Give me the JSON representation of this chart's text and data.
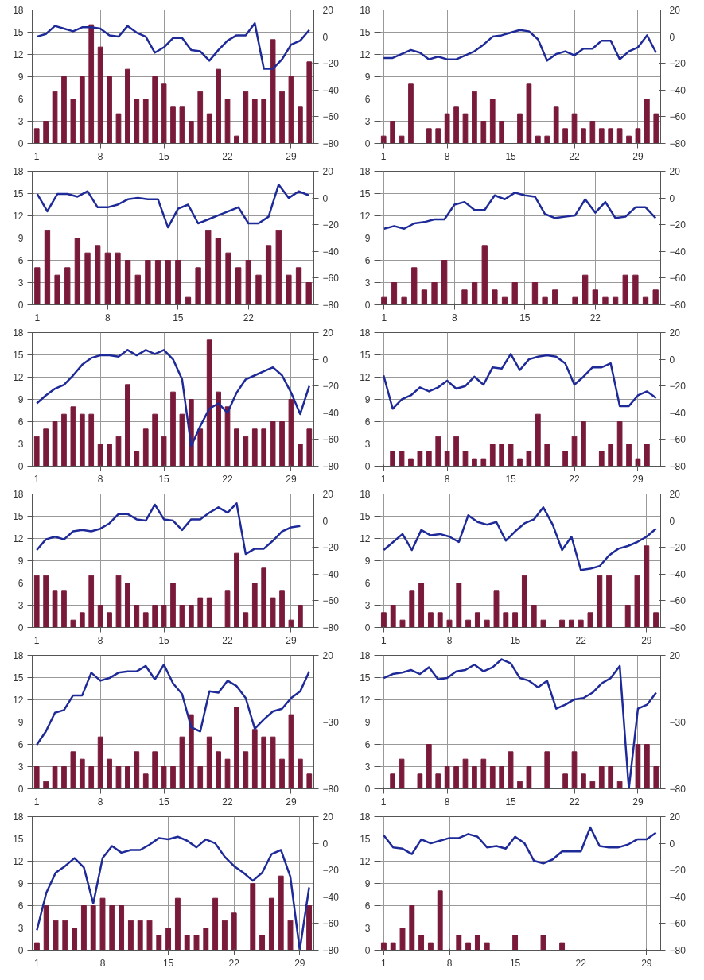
{
  "chart_data": [
    {
      "type": "bar",
      "x": [
        1,
        2,
        3,
        4,
        5,
        6,
        7,
        8,
        9,
        10,
        11,
        12,
        13,
        14,
        15,
        16,
        17,
        18,
        19,
        20,
        21,
        22,
        23,
        24,
        25,
        26,
        27,
        28,
        29,
        30,
        31
      ],
      "xlim": [
        0.5,
        31.5
      ],
      "xticks": [
        1,
        8,
        15,
        22,
        29
      ],
      "ylim": [
        0,
        18
      ],
      "yticks": [
        0,
        3,
        6,
        9,
        12,
        15,
        18
      ],
      "y2lim": [
        -80,
        20
      ],
      "y2ticks": [
        -80,
        -60,
        -40,
        -20,
        0,
        20
      ],
      "grid": true,
      "series": [
        {
          "type": "bar",
          "color": "#7a1a3a",
          "values": [
            2,
            3,
            7,
            9,
            6,
            9,
            16,
            13,
            9,
            4,
            10,
            6,
            6,
            9,
            8,
            5,
            5,
            3,
            7,
            4,
            10,
            6,
            1,
            7,
            6,
            6,
            14,
            7,
            9,
            5,
            11
          ]
        },
        {
          "type": "line",
          "axis": "y2",
          "color": "#1f2a99",
          "values": [
            0,
            2,
            8,
            6,
            4,
            7,
            7,
            6,
            1,
            0,
            8,
            3,
            0,
            -12,
            -8,
            -1,
            -1,
            -10,
            -11,
            -18,
            -10,
            -3,
            1,
            1,
            10,
            -24,
            -24,
            -17,
            -6,
            -3,
            5
          ]
        }
      ]
    },
    {
      "type": "bar",
      "x": [
        1,
        2,
        3,
        4,
        5,
        6,
        7,
        8,
        9,
        10,
        11,
        12,
        13,
        14,
        15,
        16,
        17,
        18,
        19,
        20,
        21,
        22,
        23,
        24,
        25,
        26,
        27,
        28,
        29,
        30,
        31
      ],
      "xlim": [
        0.5,
        31.5
      ],
      "xticks": [
        1,
        8,
        15,
        22,
        29
      ],
      "ylim": [
        0,
        18
      ],
      "yticks": [
        0,
        3,
        6,
        9,
        12,
        15,
        18
      ],
      "y2lim": [
        -80,
        20
      ],
      "y2ticks": [
        -80,
        -60,
        -40,
        -20,
        0,
        20
      ],
      "grid": true,
      "series": [
        {
          "type": "bar",
          "color": "#7a1a3a",
          "values": [
            1,
            3,
            1,
            8,
            0,
            2,
            2,
            4,
            5,
            4,
            7,
            3,
            6,
            3,
            0,
            4,
            8,
            1,
            1,
            5,
            2,
            4,
            2,
            3,
            2,
            2,
            2,
            1,
            2,
            6,
            4
          ]
        },
        {
          "type": "line",
          "axis": "y2",
          "color": "#1f2a99",
          "values": [
            -16,
            -16,
            -13,
            -10,
            -12,
            -17,
            -15,
            -17,
            -17,
            -14,
            -11,
            -6,
            0,
            1,
            3,
            5,
            4,
            -2,
            -18,
            -13,
            -11,
            -14,
            -9,
            -9,
            -3,
            -3,
            -17,
            -11,
            -8,
            1,
            -12
          ]
        }
      ]
    },
    {
      "type": "bar",
      "x": [
        1,
        2,
        3,
        4,
        5,
        6,
        7,
        8,
        9,
        10,
        11,
        12,
        13,
        14,
        15,
        16,
        17,
        18,
        19,
        20,
        21,
        22,
        23,
        24,
        25,
        26,
        27,
        28
      ],
      "xlim": [
        0.5,
        28.5
      ],
      "xticks": [
        1,
        8,
        15,
        22
      ],
      "ylim": [
        0,
        18
      ],
      "yticks": [
        0,
        3,
        6,
        9,
        12,
        15,
        18
      ],
      "y2lim": [
        -80,
        20
      ],
      "y2ticks": [
        -80,
        -60,
        -40,
        -20,
        0,
        20
      ],
      "grid": true,
      "series": [
        {
          "type": "bar",
          "color": "#7a1a3a",
          "values": [
            5,
            10,
            4,
            5,
            9,
            7,
            8,
            7,
            7,
            6,
            4,
            6,
            6,
            6,
            6,
            1,
            5,
            10,
            9,
            7,
            5,
            6,
            4,
            8,
            10,
            4,
            5,
            3
          ]
        },
        {
          "type": "line",
          "axis": "y2",
          "color": "#1f2a99",
          "values": [
            3,
            -10,
            3,
            3,
            1,
            5,
            -7,
            -7,
            -5,
            -1,
            0,
            -1,
            -1,
            -22,
            -8,
            -5,
            -19,
            -16,
            -13,
            -10,
            -7,
            -19,
            -19,
            -14,
            10,
            0,
            5,
            2
          ]
        }
      ]
    },
    {
      "type": "bar",
      "x": [
        1,
        2,
        3,
        4,
        5,
        6,
        7,
        8,
        9,
        10,
        11,
        12,
        13,
        14,
        15,
        16,
        17,
        18,
        19,
        20,
        21,
        22,
        23,
        24,
        25,
        26,
        27,
        28
      ],
      "xlim": [
        0.5,
        28.5
      ],
      "xticks": [
        1,
        8,
        15,
        22
      ],
      "ylim": [
        0,
        18
      ],
      "yticks": [
        0,
        3,
        6,
        9,
        12,
        15,
        18
      ],
      "y2lim": [
        -80,
        20
      ],
      "y2ticks": [
        -80,
        -60,
        -40,
        -20,
        0,
        20
      ],
      "grid": true,
      "series": [
        {
          "type": "bar",
          "color": "#7a1a3a",
          "values": [
            1,
            3,
            1,
            5,
            2,
            3,
            6,
            0,
            2,
            3,
            8,
            2,
            1,
            3,
            0,
            3,
            1,
            2,
            0,
            1,
            4,
            2,
            1,
            1,
            4,
            4,
            1,
            2
          ]
        },
        {
          "type": "line",
          "axis": "y2",
          "color": "#1f2a99",
          "values": [
            -23,
            -21,
            -23,
            -19,
            -18,
            -16,
            -16,
            -5,
            -3,
            -9,
            -9,
            2,
            -1,
            4,
            2,
            1,
            -12,
            -15,
            -14,
            -13,
            -1,
            -11,
            -3,
            -15,
            -14,
            -7,
            -7,
            -15
          ]
        }
      ]
    },
    {
      "type": "bar",
      "x": [
        1,
        2,
        3,
        4,
        5,
        6,
        7,
        8,
        9,
        10,
        11,
        12,
        13,
        14,
        15,
        16,
        17,
        18,
        19,
        20,
        21,
        22,
        23,
        24,
        25,
        26,
        27,
        28,
        29,
        30,
        31
      ],
      "xlim": [
        0.5,
        31.5
      ],
      "xticks": [
        1,
        8,
        15,
        22,
        29
      ],
      "ylim": [
        0,
        18
      ],
      "yticks": [
        0,
        3,
        6,
        9,
        12,
        15,
        18
      ],
      "y2lim": [
        -80,
        20
      ],
      "y2ticks": [
        -80,
        -60,
        -40,
        -20,
        0,
        20
      ],
      "grid": true,
      "series": [
        {
          "type": "bar",
          "color": "#7a1a3a",
          "values": [
            4,
            5,
            6,
            7,
            8,
            7,
            7,
            3,
            3,
            4,
            11,
            2,
            5,
            7,
            4,
            10,
            7,
            9,
            5,
            17,
            10,
            8,
            5,
            4,
            5,
            5,
            6,
            6,
            9,
            3,
            5
          ]
        },
        {
          "type": "line",
          "axis": "y2",
          "color": "#1f2a99",
          "values": [
            -33,
            -27,
            -22,
            -19,
            -12,
            -4,
            1,
            3,
            3,
            2,
            7,
            3,
            7,
            4,
            7,
            0,
            -15,
            -65,
            -50,
            -37,
            -33,
            -40,
            -25,
            -15,
            -12,
            -9,
            -6,
            -12,
            -25,
            -41,
            -20
          ]
        }
      ]
    },
    {
      "type": "bar",
      "x": [
        1,
        2,
        3,
        4,
        5,
        6,
        7,
        8,
        9,
        10,
        11,
        12,
        13,
        14,
        15,
        16,
        17,
        18,
        19,
        20,
        21,
        22,
        23,
        24,
        25,
        26,
        27,
        28,
        29,
        30,
        31
      ],
      "xlim": [
        0.5,
        31.5
      ],
      "xticks": [
        1,
        8,
        15,
        22,
        29
      ],
      "ylim": [
        0,
        18
      ],
      "yticks": [
        0,
        3,
        6,
        9,
        12,
        15,
        18
      ],
      "y2lim": [
        -80,
        20
      ],
      "y2ticks": [
        -80,
        -60,
        -40,
        -20,
        0,
        20
      ],
      "grid": true,
      "series": [
        {
          "type": "bar",
          "color": "#7a1a3a",
          "values": [
            0,
            2,
            2,
            1,
            2,
            2,
            4,
            2,
            4,
            2,
            1,
            1,
            3,
            3,
            3,
            1,
            2,
            7,
            3,
            0,
            2,
            4,
            6,
            0,
            2,
            3,
            6,
            3,
            1,
            3,
            0
          ]
        },
        {
          "type": "line",
          "axis": "y2",
          "color": "#1f2a99",
          "values": [
            -12,
            -37,
            -30,
            -27,
            -21,
            -24,
            -21,
            -16,
            -22,
            -20,
            -13,
            -19,
            -6,
            -7,
            4,
            -8,
            0,
            2,
            3,
            2,
            -3,
            -19,
            -13,
            -6,
            -6,
            -3,
            -35,
            -35,
            -27,
            -24,
            -29
          ]
        }
      ]
    },
    {
      "type": "bar",
      "x": [
        1,
        2,
        3,
        4,
        5,
        6,
        7,
        8,
        9,
        10,
        11,
        12,
        13,
        14,
        15,
        16,
        17,
        18,
        19,
        20,
        21,
        22,
        23,
        24,
        25,
        26,
        27,
        28,
        29,
        30
      ],
      "xlim": [
        0.5,
        31.5
      ],
      "xticks": [
        1,
        8,
        15,
        22,
        29
      ],
      "ylim": [
        0,
        18
      ],
      "yticks": [
        0,
        3,
        6,
        9,
        12,
        15,
        18
      ],
      "y2lim": [
        -80,
        20
      ],
      "y2ticks": [
        -80,
        -60,
        -40,
        -20,
        0,
        20
      ],
      "grid": true,
      "series": [
        {
          "type": "bar",
          "color": "#7a1a3a",
          "values": [
            7,
            7,
            5,
            5,
            1,
            2,
            7,
            3,
            2,
            7,
            6,
            3,
            2,
            3,
            3,
            6,
            3,
            3,
            4,
            4,
            0,
            5,
            10,
            2,
            6,
            8,
            4,
            5,
            1,
            3
          ]
        },
        {
          "type": "line",
          "axis": "y2",
          "color": "#1f2a99",
          "values": [
            -22,
            -14,
            -12,
            -14,
            -8,
            -7,
            -8,
            -6,
            -2,
            5,
            5,
            1,
            0,
            12,
            1,
            0,
            -7,
            1,
            1,
            6,
            10,
            6,
            13,
            -25,
            -21,
            -21,
            -15,
            -8,
            -5,
            -4
          ]
        }
      ]
    },
    {
      "type": "bar",
      "x": [
        1,
        2,
        3,
        4,
        5,
        6,
        7,
        8,
        9,
        10,
        11,
        12,
        13,
        14,
        15,
        16,
        17,
        18,
        19,
        20,
        21,
        22,
        23,
        24,
        25,
        26,
        27,
        28,
        29,
        30
      ],
      "xlim": [
        0.5,
        30.5
      ],
      "xticks": [
        1,
        8,
        15,
        22,
        29
      ],
      "ylim": [
        0,
        18
      ],
      "yticks": [
        0,
        3,
        6,
        9,
        12,
        15,
        18
      ],
      "y2lim": [
        -80,
        20
      ],
      "y2ticks": [
        -80,
        -60,
        -40,
        -20,
        0,
        20
      ],
      "grid": true,
      "series": [
        {
          "type": "bar",
          "color": "#7a1a3a",
          "values": [
            2,
            3,
            1,
            5,
            6,
            2,
            2,
            1,
            6,
            1,
            2,
            1,
            5,
            2,
            2,
            7,
            3,
            1,
            0,
            1,
            1,
            1,
            2,
            7,
            7,
            0,
            3,
            7,
            11,
            2
          ]
        },
        {
          "type": "line",
          "axis": "y2",
          "color": "#1f2a99",
          "values": [
            -22,
            -16,
            -10,
            -22,
            -7,
            -11,
            -10,
            -12,
            -16,
            4,
            -1,
            -3,
            -1,
            -15,
            -8,
            -2,
            1,
            10,
            -3,
            -22,
            -12,
            -37,
            -36,
            -34,
            -26,
            -21,
            -19,
            -16,
            -12,
            -6
          ]
        }
      ]
    },
    {
      "type": "bar",
      "x": [
        1,
        2,
        3,
        4,
        5,
        6,
        7,
        8,
        9,
        10,
        11,
        12,
        13,
        14,
        15,
        16,
        17,
        18,
        19,
        20,
        21,
        22,
        23,
        24,
        25,
        26,
        27,
        28,
        29,
        30,
        31
      ],
      "xlim": [
        0.5,
        31.5
      ],
      "xticks": [
        1,
        8,
        15,
        22,
        29
      ],
      "ylim": [
        0,
        18
      ],
      "yticks": [
        0,
        3,
        6,
        9,
        12,
        15,
        18
      ],
      "y2lim": [
        -80,
        20
      ],
      "y2ticks": [
        -80,
        -30,
        20
      ],
      "grid": true,
      "series": [
        {
          "type": "bar",
          "color": "#7a1a3a",
          "values": [
            3,
            1,
            3,
            3,
            5,
            4,
            3,
            7,
            4,
            3,
            3,
            5,
            2,
            5,
            3,
            3,
            7,
            10,
            3,
            7,
            5,
            4,
            11,
            5,
            8,
            7,
            7,
            4,
            10,
            4,
            2
          ]
        },
        {
          "type": "line",
          "axis": "y2",
          "color": "#1f2a99",
          "values": [
            -47,
            -37,
            -23,
            -21,
            -10,
            -10,
            7,
            1,
            3,
            7,
            8,
            8,
            12,
            2,
            13,
            -1,
            -9,
            -34,
            -37,
            -7,
            -8,
            1,
            -3,
            -12,
            -35,
            -28,
            -22,
            -20,
            -12,
            -7,
            8
          ]
        }
      ]
    },
    {
      "type": "bar",
      "x": [
        1,
        2,
        3,
        4,
        5,
        6,
        7,
        8,
        9,
        10,
        11,
        12,
        13,
        14,
        15,
        16,
        17,
        18,
        19,
        20,
        21,
        22,
        23,
        24,
        25,
        26,
        27,
        28,
        29,
        30,
        31
      ],
      "xlim": [
        0.5,
        31.5
      ],
      "xticks": [
        1,
        8,
        15,
        22,
        29
      ],
      "ylim": [
        0,
        18
      ],
      "yticks": [
        0,
        3,
        6,
        9,
        12,
        15,
        18
      ],
      "y2lim": [
        -80,
        20
      ],
      "y2ticks": [
        -80,
        -30,
        20
      ],
      "grid": true,
      "series": [
        {
          "type": "bar",
          "color": "#7a1a3a",
          "values": [
            0,
            2,
            4,
            0,
            2,
            6,
            2,
            3,
            3,
            4,
            3,
            4,
            3,
            3,
            5,
            1,
            3,
            0,
            5,
            0,
            2,
            5,
            2,
            1,
            3,
            3,
            1,
            0,
            6,
            6,
            3
          ]
        },
        {
          "type": "line",
          "axis": "y2",
          "color": "#1f2a99",
          "values": [
            3,
            6,
            7,
            9,
            6,
            11,
            2,
            3,
            8,
            9,
            13,
            8,
            11,
            17,
            14,
            3,
            1,
            -4,
            1,
            -20,
            -17,
            -13,
            -12,
            -8,
            -1,
            3,
            12,
            -80,
            -20,
            -17,
            -8
          ]
        }
      ]
    },
    {
      "type": "bar",
      "x": [
        1,
        2,
        3,
        4,
        5,
        6,
        7,
        8,
        9,
        10,
        11,
        12,
        13,
        14,
        15,
        16,
        17,
        18,
        19,
        20,
        21,
        22,
        23,
        24,
        25,
        26,
        27,
        28,
        29,
        30
      ],
      "xlim": [
        0.5,
        30.5
      ],
      "xticks": [
        1,
        8,
        15,
        22,
        29
      ],
      "ylim": [
        0,
        18
      ],
      "yticks": [
        0,
        3,
        6,
        9,
        12,
        15,
        18
      ],
      "y2lim": [
        -80,
        20
      ],
      "y2ticks": [
        -80,
        -60,
        -40,
        -20,
        0,
        20
      ],
      "grid": true,
      "series": [
        {
          "type": "bar",
          "color": "#7a1a3a",
          "values": [
            1,
            6,
            4,
            4,
            3,
            6,
            6,
            7,
            6,
            6,
            4,
            4,
            4,
            2,
            3,
            7,
            2,
            2,
            3,
            7,
            4,
            5,
            0,
            9,
            2,
            7,
            10,
            4,
            0,
            6
          ]
        },
        {
          "type": "line",
          "axis": "y2",
          "color": "#1f2a99",
          "values": [
            -65,
            -37,
            -22,
            -17,
            -11,
            -18,
            -45,
            -11,
            -2,
            -7,
            -5,
            -5,
            -1,
            4,
            3,
            5,
            2,
            -3,
            3,
            0,
            -10,
            -17,
            -22,
            -28,
            -22,
            -8,
            -5,
            -25,
            -80,
            -33
          ]
        }
      ]
    },
    {
      "type": "bar",
      "x": [
        1,
        2,
        3,
        4,
        5,
        6,
        7,
        8,
        9,
        10,
        11,
        12,
        13,
        14,
        15,
        16,
        17,
        18,
        19,
        20,
        21,
        22,
        23,
        24,
        25,
        26,
        27,
        28,
        29,
        30
      ],
      "xlim": [
        0.5,
        30.5
      ],
      "xticks": [
        1,
        8,
        15,
        22,
        29
      ],
      "ylim": [
        0,
        18
      ],
      "yticks": [
        0,
        3,
        6,
        9,
        12,
        15,
        18
      ],
      "y2lim": [
        -80,
        20
      ],
      "y2ticks": [
        -80,
        -60,
        -40,
        -20,
        0,
        20
      ],
      "grid": true,
      "series": [
        {
          "type": "bar",
          "color": "#7a1a3a",
          "values": [
            1,
            1,
            3,
            6,
            2,
            1,
            8,
            0,
            2,
            1,
            2,
            1,
            0,
            0,
            2,
            0,
            0,
            2,
            0,
            1,
            0,
            0,
            0,
            0,
            0,
            0,
            0,
            0,
            0,
            0
          ]
        },
        {
          "type": "line",
          "axis": "y2",
          "color": "#1f2a99",
          "values": [
            6,
            -3,
            -4,
            -8,
            3,
            0,
            2,
            4,
            4,
            7,
            5,
            -3,
            -2,
            -4,
            5,
            0,
            -13,
            -15,
            -12,
            -6,
            -6,
            -6,
            12,
            -2,
            -3,
            -3,
            -1,
            3,
            3,
            8
          ]
        }
      ]
    }
  ]
}
